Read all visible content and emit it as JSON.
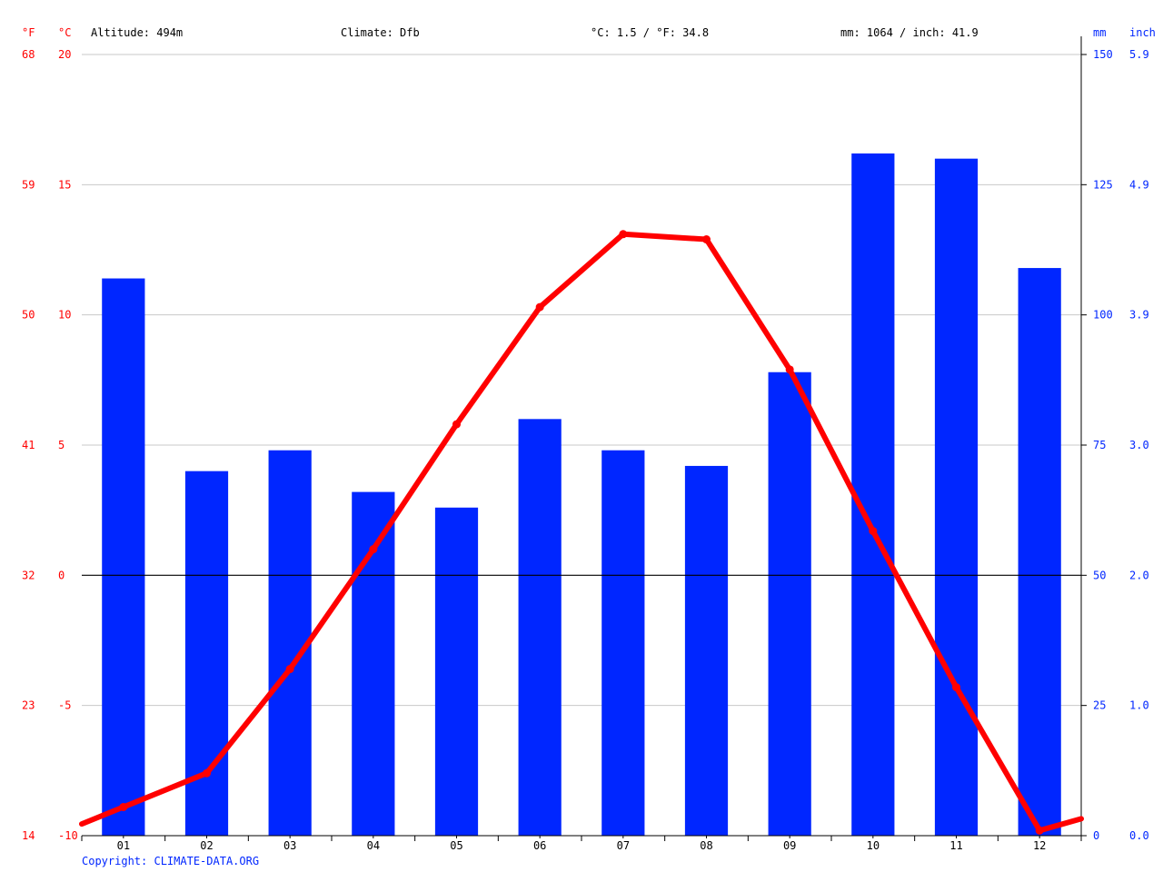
{
  "header": {
    "altitude": "Altitude: 494m",
    "climate": "Climate: Dfb",
    "temp_avg": "°C: 1.5 / °F: 34.8",
    "precip_total": "mm: 1064 / inch: 41.9"
  },
  "footer": {
    "copyright": "Copyright: CLIMATE-DATA.ORG"
  },
  "colors": {
    "temperature": "#ff0000",
    "precipitation": "#0026ff",
    "grid": "#c8c8c8",
    "zero_line": "#000000"
  },
  "chart_data": {
    "type": "bar+line",
    "categories": [
      "01",
      "02",
      "03",
      "04",
      "05",
      "06",
      "07",
      "08",
      "09",
      "10",
      "11",
      "12"
    ],
    "series": [
      {
        "kind": "bar",
        "axis": "right",
        "values": [
          107,
          70,
          74,
          66,
          63,
          80,
          74,
          71,
          89,
          131,
          130,
          109
        ]
      },
      {
        "kind": "line",
        "axis": "left",
        "values": [
          -8.9,
          -7.6,
          -3.6,
          1.0,
          5.8,
          10.3,
          13.1,
          12.9,
          7.9,
          1.7,
          -4.3,
          -9.8
        ]
      }
    ],
    "axes": {
      "left_f": {
        "unit": "°F",
        "ticks": [
          "68",
          "59",
          "50",
          "41",
          "32",
          "23",
          "14"
        ]
      },
      "left_c": {
        "unit": "°C",
        "ticks": [
          "20",
          "15",
          "10",
          "5",
          "0",
          "-5",
          "-10"
        ],
        "ylim": [
          -10,
          20
        ]
      },
      "right_mm": {
        "unit": "mm",
        "ticks": [
          "150",
          "125",
          "100",
          "75",
          "50",
          "25",
          "0"
        ],
        "ylim": [
          0,
          150
        ]
      },
      "right_inch": {
        "unit": "inch",
        "ticks": [
          "5.9",
          "4.9",
          "3.9",
          "3.0",
          "2.0",
          "1.0",
          "0.0"
        ]
      }
    },
    "grid": true
  }
}
